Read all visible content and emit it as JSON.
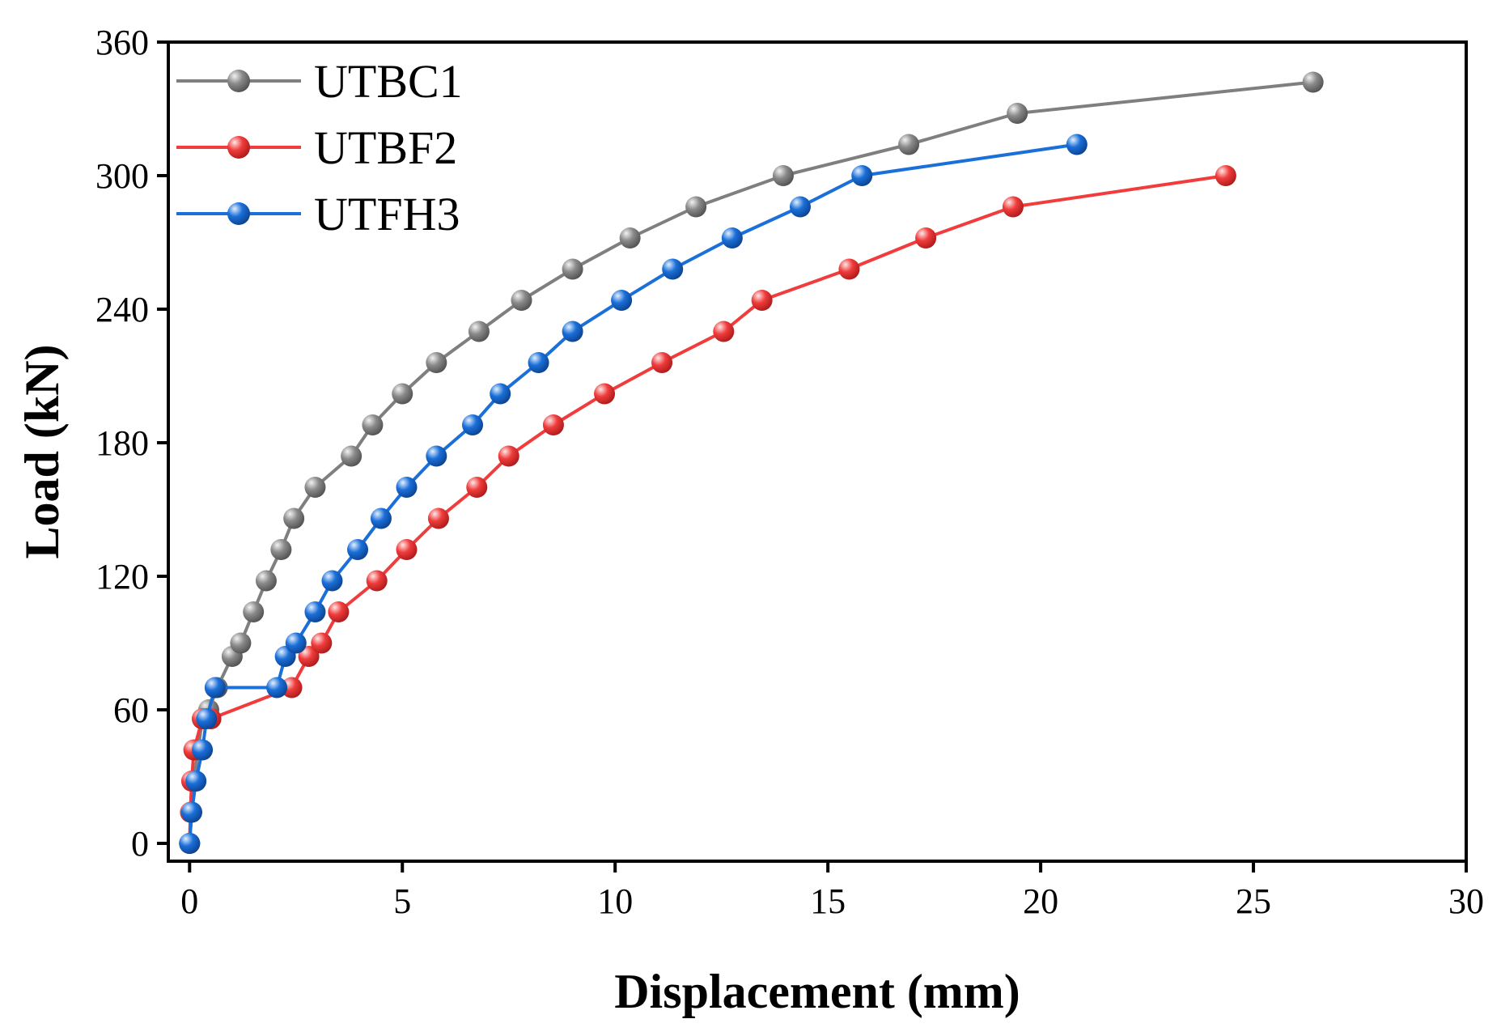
{
  "chart_data": {
    "type": "line",
    "xlabel": "Displacement (mm)",
    "ylabel": "Load (kN)",
    "xlim": [
      -0.5,
      30
    ],
    "ylim": [
      -8,
      360
    ],
    "xticks": [
      0,
      5,
      10,
      15,
      20,
      25,
      30
    ],
    "yticks": [
      0,
      60,
      120,
      180,
      240,
      300,
      360
    ],
    "grid": false,
    "legend_position": "top-left",
    "series": [
      {
        "name": "UTBC1",
        "color": "#7f7f7f",
        "x": [
          0,
          0.05,
          0.1,
          0.2,
          0.3,
          0.45,
          0.65,
          1.0,
          1.2,
          1.5,
          1.8,
          2.15,
          2.45,
          2.95,
          3.8,
          4.3,
          5.0,
          5.8,
          6.8,
          7.8,
          9.0,
          10.35,
          11.9,
          13.95,
          16.9,
          19.45,
          26.4
        ],
        "y": [
          0,
          14,
          28,
          42,
          56,
          60,
          70,
          84,
          90,
          104,
          118,
          132,
          146,
          160,
          174,
          188,
          202,
          216,
          230,
          244,
          258,
          272,
          286,
          300,
          314,
          328,
          342
        ]
      },
      {
        "name": "UTBF2",
        "color": "#f03c3c",
        "x": [
          0,
          0.02,
          0.05,
          0.1,
          0.3,
          0.5,
          2.4,
          2.8,
          3.1,
          3.5,
          4.4,
          5.1,
          5.85,
          6.75,
          7.5,
          8.55,
          9.75,
          11.1,
          12.55,
          13.45,
          15.5,
          17.3,
          19.35,
          24.35
        ],
        "y": [
          0,
          14,
          28,
          42,
          56,
          56,
          70,
          84,
          90,
          104,
          118,
          132,
          146,
          160,
          174,
          188,
          202,
          216,
          230,
          244,
          258,
          272,
          286,
          300
        ]
      },
      {
        "name": "UTFH3",
        "color": "#1a6fd9",
        "x": [
          0,
          0.05,
          0.15,
          0.3,
          0.4,
          0.6,
          2.05,
          2.25,
          2.5,
          2.95,
          3.35,
          3.95,
          4.5,
          5.1,
          5.8,
          6.65,
          7.3,
          8.2,
          9.0,
          10.15,
          11.35,
          12.75,
          14.35,
          15.8,
          20.85
        ],
        "y": [
          0,
          14,
          28,
          42,
          56,
          70,
          70,
          84,
          90,
          104,
          118,
          132,
          146,
          160,
          174,
          188,
          202,
          216,
          230,
          244,
          258,
          272,
          286,
          300,
          314
        ]
      }
    ]
  }
}
